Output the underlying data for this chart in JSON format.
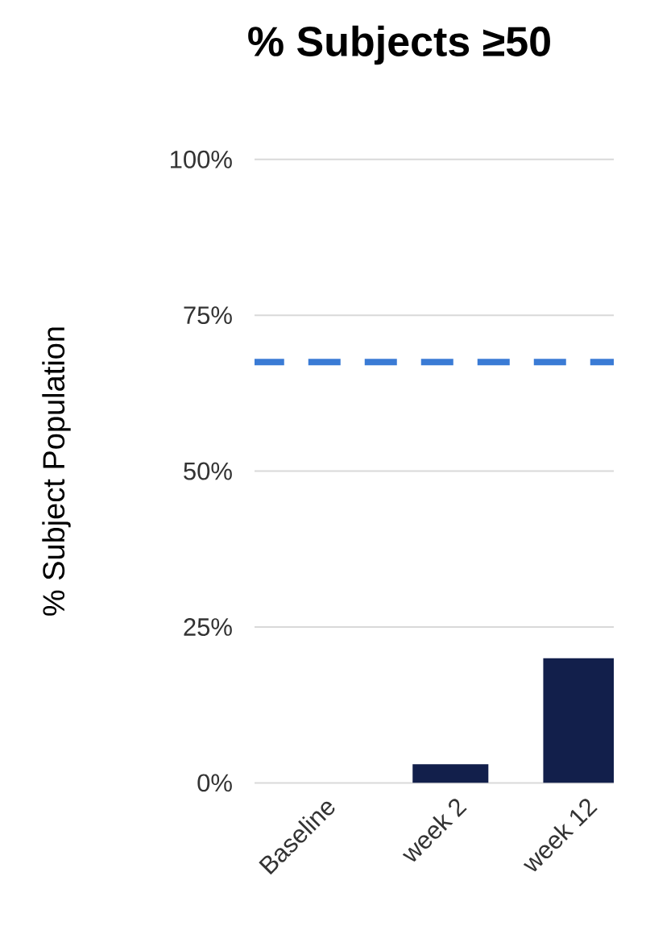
{
  "chart_data": {
    "type": "bar",
    "title": "% Subjects ≥50",
    "ylabel": "% Subject Population",
    "categories": [
      "Baseline",
      "week 2",
      "week 12"
    ],
    "values": [
      0,
      3,
      20
    ],
    "color": "#121f4b",
    "ylim": [
      0,
      100
    ],
    "yticks": [
      {
        "value": 0,
        "label": "0%"
      },
      {
        "value": 25,
        "label": "25%"
      },
      {
        "value": 50,
        "label": "50%"
      },
      {
        "value": 75,
        "label": "75%"
      },
      {
        "value": 100,
        "label": "100%"
      }
    ],
    "grid": "y",
    "ref_lines": [
      {
        "axis": "y",
        "value": 67.5,
        "color": "#3a7bd5",
        "line_style": "dashed"
      }
    ]
  }
}
